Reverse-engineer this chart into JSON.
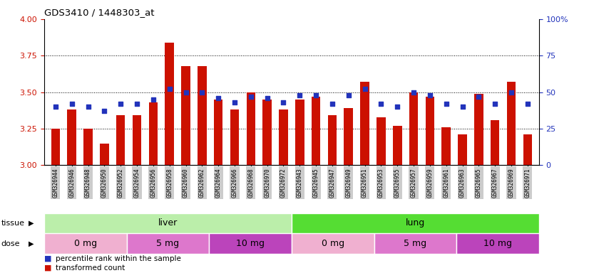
{
  "title": "GDS3410 / 1448303_at",
  "samples": [
    "GSM326944",
    "GSM326946",
    "GSM326948",
    "GSM326950",
    "GSM326952",
    "GSM326954",
    "GSM326956",
    "GSM326958",
    "GSM326960",
    "GSM326962",
    "GSM326964",
    "GSM326966",
    "GSM326968",
    "GSM326970",
    "GSM326972",
    "GSM326943",
    "GSM326945",
    "GSM326947",
    "GSM326949",
    "GSM326951",
    "GSM326953",
    "GSM326955",
    "GSM326957",
    "GSM326959",
    "GSM326961",
    "GSM326963",
    "GSM326965",
    "GSM326967",
    "GSM326969",
    "GSM326971"
  ],
  "transformed_count": [
    3.25,
    3.38,
    3.25,
    3.15,
    3.34,
    3.34,
    3.43,
    3.84,
    3.68,
    3.68,
    3.45,
    3.38,
    3.5,
    3.45,
    3.38,
    3.45,
    3.47,
    3.34,
    3.39,
    3.57,
    3.33,
    3.27,
    3.5,
    3.47,
    3.26,
    3.21,
    3.49,
    3.31,
    3.57,
    3.21
  ],
  "percentile_rank": [
    40,
    42,
    40,
    37,
    42,
    42,
    45,
    52,
    50,
    50,
    46,
    43,
    47,
    46,
    43,
    48,
    48,
    42,
    48,
    52,
    42,
    40,
    50,
    48,
    42,
    40,
    47,
    42,
    50,
    42
  ],
  "ylim_left": [
    3.0,
    4.0
  ],
  "ylim_right": [
    0,
    100
  ],
  "yticks_left": [
    3.0,
    3.25,
    3.5,
    3.75,
    4.0
  ],
  "yticks_right": [
    0,
    25,
    50,
    75,
    100
  ],
  "bar_color": "#cc1100",
  "dot_color": "#2233bb",
  "tissue_groups": [
    {
      "label": "liver",
      "start": 0,
      "end": 15,
      "color": "#bbeeaa"
    },
    {
      "label": "lung",
      "start": 15,
      "end": 30,
      "color": "#55dd33"
    }
  ],
  "dose_groups": [
    {
      "label": "0 mg",
      "start": 0,
      "end": 5,
      "color": "#f0b0d0"
    },
    {
      "label": "5 mg",
      "start": 5,
      "end": 10,
      "color": "#dd77cc"
    },
    {
      "label": "10 mg",
      "start": 10,
      "end": 15,
      "color": "#bb44bb"
    },
    {
      "label": "0 mg",
      "start": 15,
      "end": 20,
      "color": "#f0b0d0"
    },
    {
      "label": "5 mg",
      "start": 20,
      "end": 25,
      "color": "#dd77cc"
    },
    {
      "label": "10 mg",
      "start": 25,
      "end": 30,
      "color": "#bb44bb"
    }
  ],
  "legend_items": [
    {
      "label": "transformed count",
      "color": "#cc1100"
    },
    {
      "label": "percentile rank within the sample",
      "color": "#2233bb"
    }
  ]
}
